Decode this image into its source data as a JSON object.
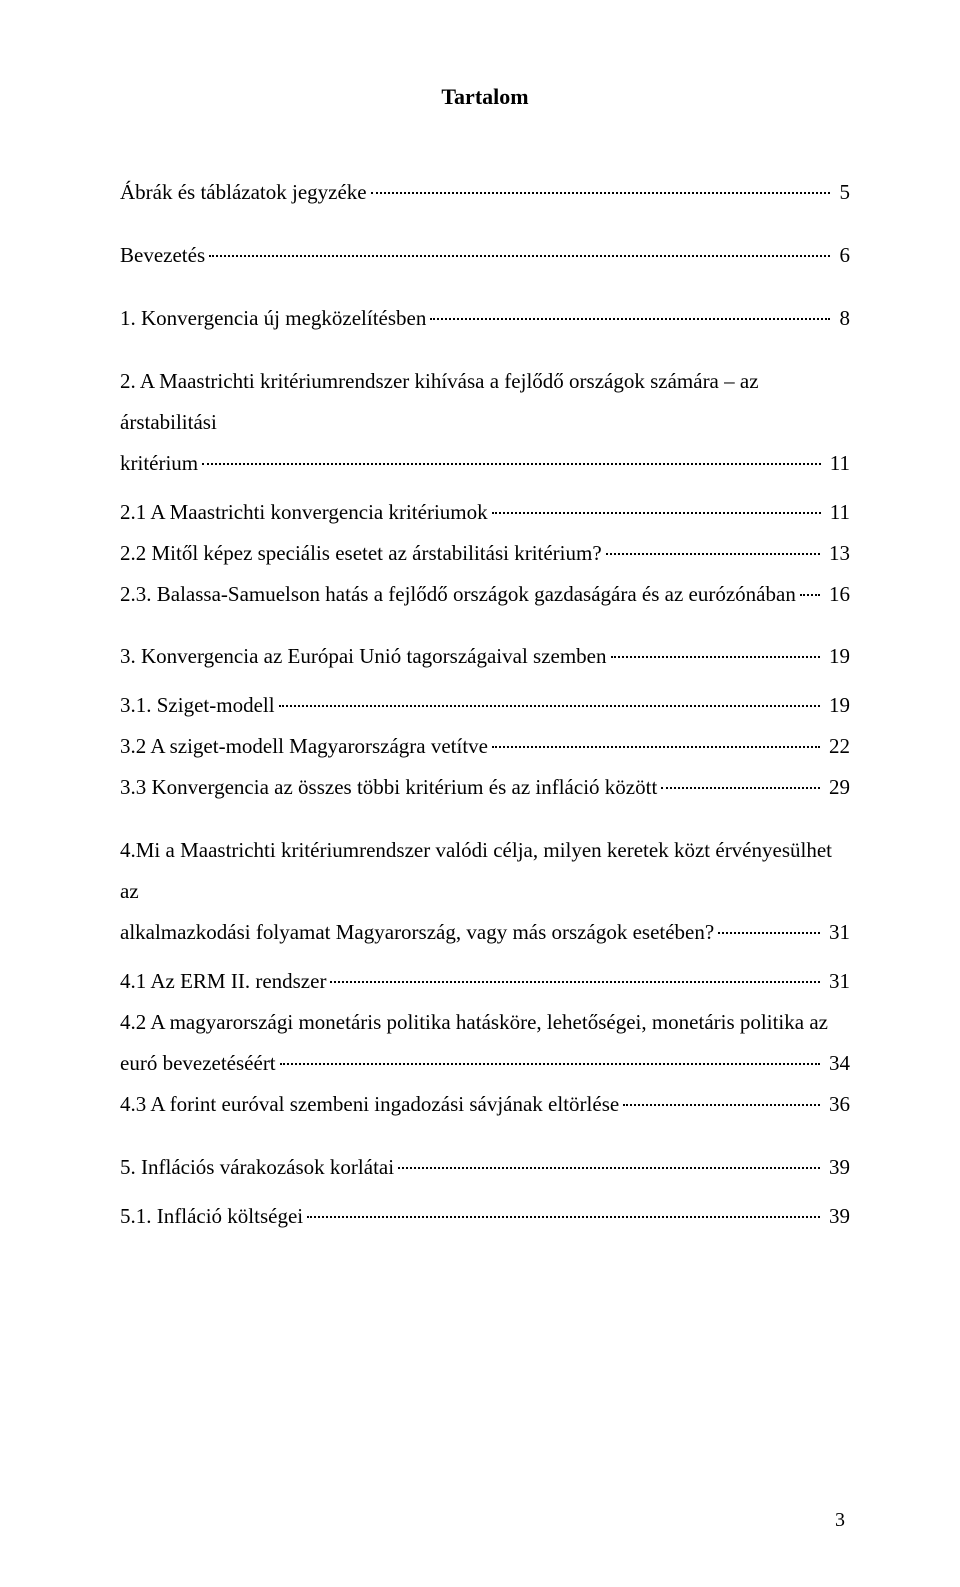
{
  "title": "Tartalom",
  "page_number": "3",
  "entries": [
    {
      "text": "Ábrák és táblázatok jegyzéke",
      "page": "5",
      "spacer_after": true
    },
    {
      "text": "Bevezetés",
      "page": "6",
      "spacer_after": true
    },
    {
      "text": "1. Konvergencia új megközelítésben",
      "page": "8",
      "spacer_after": true
    },
    {
      "wrap_first": "2. A Maastrichti kritériumrendszer kihívása a fejlődő országok számára – az árstabilitási",
      "text": "kritérium",
      "page": "11",
      "spacer_after_small": true
    },
    {
      "text": "2.1 A Maastrichti konvergencia kritériumok",
      "page": "11"
    },
    {
      "text": "2.2 Mitől képez speciális esetet az árstabilitási kritérium?",
      "page": "13"
    },
    {
      "text": "2.3. Balassa-Samuelson hatás a fejlődő országok gazdaságára és az eurózónában",
      "page": "16",
      "spacer_after": true
    },
    {
      "text": "3. Konvergencia az Európai Unió tagországaival szemben",
      "page": "19",
      "spacer_after_small": true
    },
    {
      "text": "3.1. Sziget-modell",
      "page": "19"
    },
    {
      "text": "3.2 A sziget-modell Magyarországra vetítve",
      "page": "22"
    },
    {
      "text": "3.3 Konvergencia az összes többi kritérium és az infláció között",
      "page": "29",
      "spacer_after": true
    },
    {
      "wrap_first": "4.Mi a Maastrichti kritériumrendszer valódi célja, milyen keretek közt érvényesülhet az",
      "text": "alkalmazkodási folyamat Magyarország, vagy más országok esetében?",
      "page": "31",
      "spacer_after_small": true
    },
    {
      "text": "4.1 Az ERM II. rendszer",
      "page": "31"
    },
    {
      "wrap_first": "4.2 A magyarországi monetáris politika hatásköre, lehetőségei, monetáris politika az",
      "text": "euró bevezetéséért",
      "page": "34"
    },
    {
      "text": "4.3 A forint euróval szembeni ingadozási sávjának eltörlése",
      "page": "36",
      "spacer_after": true
    },
    {
      "text": "5. Inflációs várakozások korlátai",
      "page": "39",
      "spacer_after_small": true
    },
    {
      "text": "5.1. Infláció költségei",
      "page": "39"
    }
  ]
}
